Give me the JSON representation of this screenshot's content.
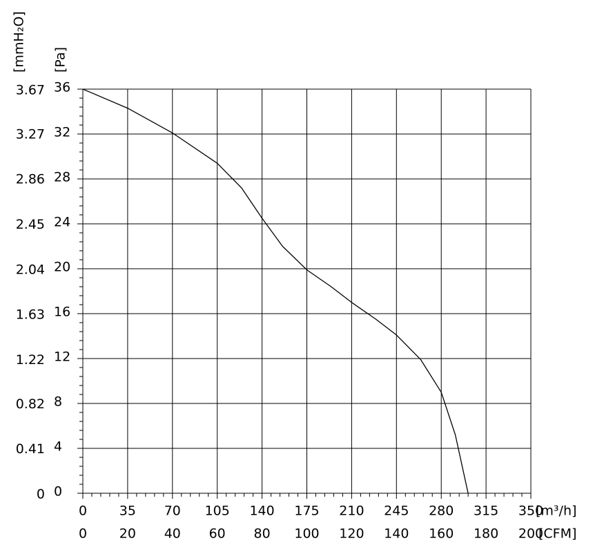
{
  "chart_data": {
    "type": "line",
    "x_label": "[m³/h]",
    "x2_label": "[CFM]",
    "y_label": "[Pa]",
    "y2_label": "[mmH₂O]",
    "x": [
      0,
      35,
      70,
      105,
      124,
      140,
      156,
      175,
      194,
      210,
      229,
      245,
      264,
      280,
      291,
      301
    ],
    "series": [
      {
        "color": "#000000",
        "values": [
          36,
          34.3,
          32.1,
          29.4,
          27.2,
          24.5,
          22.0,
          19.9,
          18.4,
          17.0,
          15.5,
          14.1,
          11.9,
          9.0,
          5.2,
          0
        ]
      }
    ],
    "xlim": [
      0,
      350
    ],
    "xticks": [
      0,
      35,
      70,
      105,
      140,
      175,
      210,
      245,
      280,
      315,
      350
    ],
    "x2lim": [
      0,
      200
    ],
    "x2ticks": [
      0,
      20,
      40,
      60,
      80,
      100,
      120,
      140,
      160,
      180,
      200
    ],
    "ylim": [
      0,
      36
    ],
    "yticks": [
      0,
      4,
      8,
      12,
      16,
      20,
      24,
      28,
      32,
      36
    ],
    "y2lim": [
      0,
      3.67
    ],
    "y2ticks": [
      0,
      0.41,
      0.82,
      1.22,
      1.63,
      2.04,
      2.45,
      2.86,
      3.27,
      3.67
    ],
    "grid": true
  }
}
